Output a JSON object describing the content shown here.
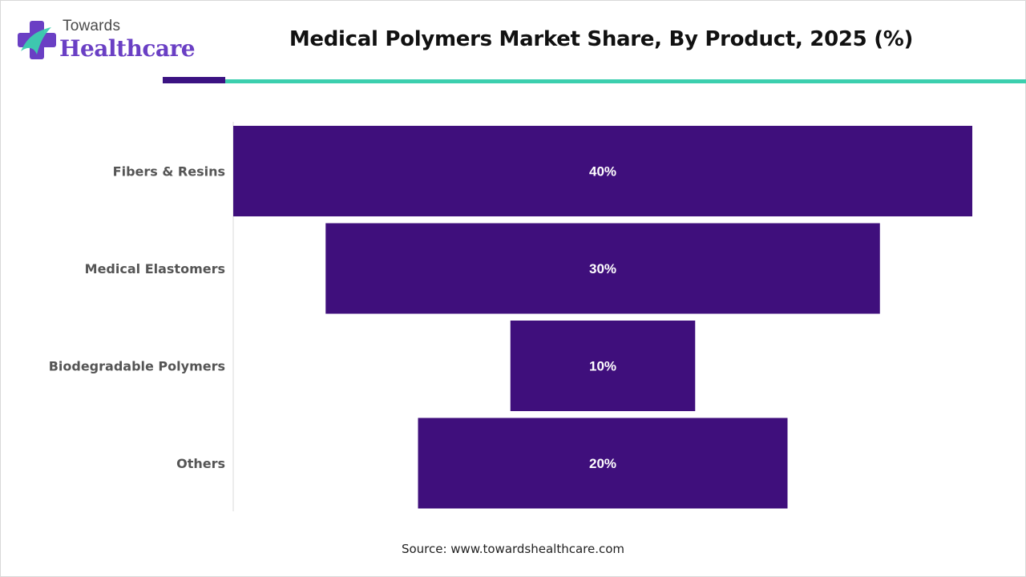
{
  "brand": {
    "line1": "Towards",
    "line2": "Healthcare",
    "colors": {
      "primary": "#6a3fc4",
      "accent": "#3ccfae",
      "dark": "#3b1382"
    }
  },
  "chart_data": {
    "type": "bar",
    "title": "Medical Polymers Market Share, By Product, 2025 (%)",
    "categories": [
      "Fibers & Resins",
      "Medical Elastomers",
      "Biodegradable Polymers",
      "Others"
    ],
    "values": [
      40,
      30,
      10,
      20
    ],
    "data_labels": [
      "40%",
      "30%",
      "10%",
      "20%"
    ],
    "orientation": "horizontal-funnel",
    "bar_color": "#3f0f7c",
    "label_color": "#ffffff",
    "xlabel": "",
    "ylabel": "",
    "xlim": [
      0,
      40
    ],
    "grid": false,
    "legend": "none"
  },
  "source": "Source: www.towardshealthcare.com"
}
